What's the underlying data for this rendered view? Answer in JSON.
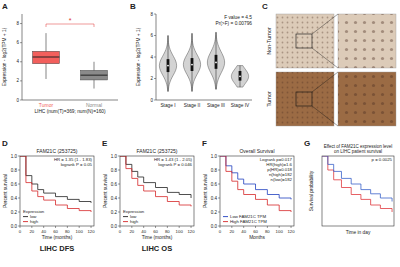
{
  "chart_data": [
    {
      "panel_label": "A",
      "type": "box",
      "xlabel": "LIHC (num(T)=369; num(N)=160)",
      "ylabel": "Expression - log2(TPM + 1)",
      "categories": [
        "Tumor",
        "Normal"
      ],
      "colors": [
        "#f25f5c",
        "#8a8a8a"
      ],
      "boxes": [
        {
          "min": 2.2,
          "q1": 3.8,
          "median": 4.5,
          "q3": 5.1,
          "max": 7.0
        },
        {
          "min": 1.2,
          "q1": 2.1,
          "median": 2.6,
          "q3": 3.1,
          "max": 4.0
        }
      ],
      "ylim": [
        0,
        9
      ],
      "yticks": [
        0,
        2,
        4,
        6,
        8
      ],
      "annotations": [
        "*"
      ],
      "grid": false
    },
    {
      "panel_label": "B",
      "type": "violin",
      "ylabel": "Expression - log2(TPM + 1)",
      "categories": [
        "Stage I",
        "Stage II",
        "Stage III",
        "Stage IV"
      ],
      "color": "#d3d3d3",
      "violins": [
        {
          "min": 0.8,
          "q1": 2.6,
          "median": 3.2,
          "q3": 3.8,
          "max": 6.0
        },
        {
          "min": 0.8,
          "q1": 2.7,
          "median": 3.3,
          "q3": 3.9,
          "max": 6.2
        },
        {
          "min": 1.0,
          "q1": 2.9,
          "median": 3.5,
          "q3": 4.2,
          "max": 6.3
        },
        {
          "min": 1.2,
          "q1": 1.8,
          "median": 2.2,
          "q3": 2.7,
          "max": 3.2
        }
      ],
      "ylim": [
        0,
        8
      ],
      "yticks": [
        0,
        2,
        4,
        6,
        8
      ],
      "annotations": [
        "F value = 4.5",
        "Pr(>F) = 0.00796"
      ],
      "grid": false
    },
    {
      "panel_label": "D",
      "type": "line",
      "title": "FAM21C (253725)",
      "subtitle": "LIHC DFS",
      "xlabel": "Time (months)",
      "ylabel": "Percent survival",
      "legend": "lower left",
      "legend_title": "Expression",
      "series": [
        {
          "name": "low",
          "color": "#222222",
          "x": [
            0,
            10,
            20,
            30,
            40,
            60,
            80,
            100,
            120
          ],
          "values": [
            1,
            0.72,
            0.6,
            0.52,
            0.47,
            0.42,
            0.38,
            0.35,
            0.33
          ]
        },
        {
          "name": "high",
          "color": "#d62728",
          "x": [
            0,
            10,
            20,
            30,
            40,
            60,
            80,
            100,
            120
          ],
          "values": [
            1,
            0.62,
            0.5,
            0.42,
            0.37,
            0.3,
            0.25,
            0.22,
            0.2
          ]
        }
      ],
      "xlim": [
        0,
        125
      ],
      "xticks": [
        0,
        20,
        40,
        60,
        80,
        100,
        120
      ],
      "ylim": [
        0,
        1
      ],
      "yticks": [
        {
          "value": 0,
          "label": "0.0"
        },
        0.2,
        0.4,
        0.6,
        0.8,
        {
          "value": 1,
          "label": "1.0"
        }
      ],
      "annotations": [
        "HR = 1.35 (1 - 1.83)",
        "logrank P = 0.05"
      ],
      "grid": false
    },
    {
      "panel_label": "E",
      "type": "line",
      "title": "FAM21C (253725)",
      "subtitle": "LIHC OS",
      "xlabel": "Time (months)",
      "ylabel": "Percent survival",
      "legend": "lower left",
      "legend_title": "Expression",
      "series": [
        {
          "name": "low",
          "color": "#222222",
          "x": [
            0,
            10,
            20,
            30,
            40,
            60,
            80,
            100,
            120
          ],
          "values": [
            1,
            0.88,
            0.78,
            0.7,
            0.62,
            0.55,
            0.48,
            0.45,
            0.4
          ]
        },
        {
          "name": "high",
          "color": "#d62728",
          "x": [
            0,
            10,
            20,
            30,
            40,
            60,
            80,
            100,
            120
          ],
          "values": [
            1,
            0.82,
            0.68,
            0.58,
            0.5,
            0.42,
            0.35,
            0.3,
            0.28
          ]
        }
      ],
      "xlim": [
        0,
        125
      ],
      "xticks": [
        0,
        20,
        40,
        60,
        80,
        100,
        120
      ],
      "ylim": [
        0,
        1
      ],
      "yticks": [
        {
          "value": 0,
          "label": "0.0"
        },
        0.2,
        0.4,
        0.6,
        0.8,
        {
          "value": 1,
          "label": "1.0"
        }
      ],
      "annotations": [
        "HR = 1.43 (1 - 2.05)",
        "logrank P = 0.046"
      ],
      "grid": false
    },
    {
      "panel_label": "F",
      "type": "line",
      "title": "Overall Survival",
      "xlabel": "Months",
      "ylabel": "Percent survival",
      "legend": "lower left",
      "series": [
        {
          "name": "Low FAM21C TPM",
          "color": "#1f3fbf",
          "x": [
            0,
            10,
            20,
            30,
            40,
            60,
            80,
            100,
            120
          ],
          "values": [
            1,
            0.86,
            0.76,
            0.67,
            0.6,
            0.52,
            0.45,
            0.4,
            0.38
          ]
        },
        {
          "name": "High FAM21C TPM",
          "color": "#d62728",
          "x": [
            0,
            10,
            20,
            30,
            40,
            60,
            80,
            100,
            120
          ],
          "values": [
            1,
            0.78,
            0.64,
            0.52,
            0.45,
            0.38,
            0.3,
            0.22,
            0.2
          ]
        }
      ],
      "xlim": [
        0,
        125
      ],
      "xticks": [
        0,
        20,
        40,
        60,
        80,
        100,
        120
      ],
      "ylim": [
        0,
        1
      ],
      "yticks": [
        {
          "value": 0,
          "label": "0.0"
        },
        0.2,
        0.4,
        0.6,
        0.8,
        {
          "value": 1,
          "label": "1.0"
        }
      ],
      "annotations": [
        "Logrank p=0.017",
        "HR(high)=1.6",
        "p(HR)=0.018",
        "n(high)=182",
        "n(low)=182"
      ],
      "grid": false
    },
    {
      "panel_label": "G",
      "type": "line",
      "title": "Effect of FAM21C expression level on LIHC patient survival",
      "xlabel": "Time in day",
      "ylabel": "Survival probability",
      "series": [
        {
          "color": "#e0393e",
          "x": [
            0,
            300,
            600,
            1000,
            1500,
            2000,
            2500,
            3000,
            3600
          ],
          "values": [
            1,
            0.8,
            0.66,
            0.55,
            0.45,
            0.38,
            0.3,
            0.25,
            0.2
          ]
        },
        {
          "color": "#3a62c9",
          "x": [
            0,
            300,
            600,
            1000,
            1500,
            2000,
            2500,
            3000,
            3600
          ],
          "values": [
            1,
            0.88,
            0.78,
            0.68,
            0.6,
            0.52,
            0.46,
            0.4,
            0.35
          ]
        }
      ],
      "xlim": [
        0,
        3700
      ],
      "ylim": [
        0,
        1
      ],
      "tick_labels": false,
      "annotations": [
        "p = 0.0025"
      ],
      "grid": false
    }
  ],
  "image_panel": {
    "panel_label": "C",
    "items": [
      {
        "label": "Non-Tumor",
        "color": "#dccbb8"
      },
      {
        "label": "Tumor",
        "color": "#9b6b44"
      }
    ]
  }
}
